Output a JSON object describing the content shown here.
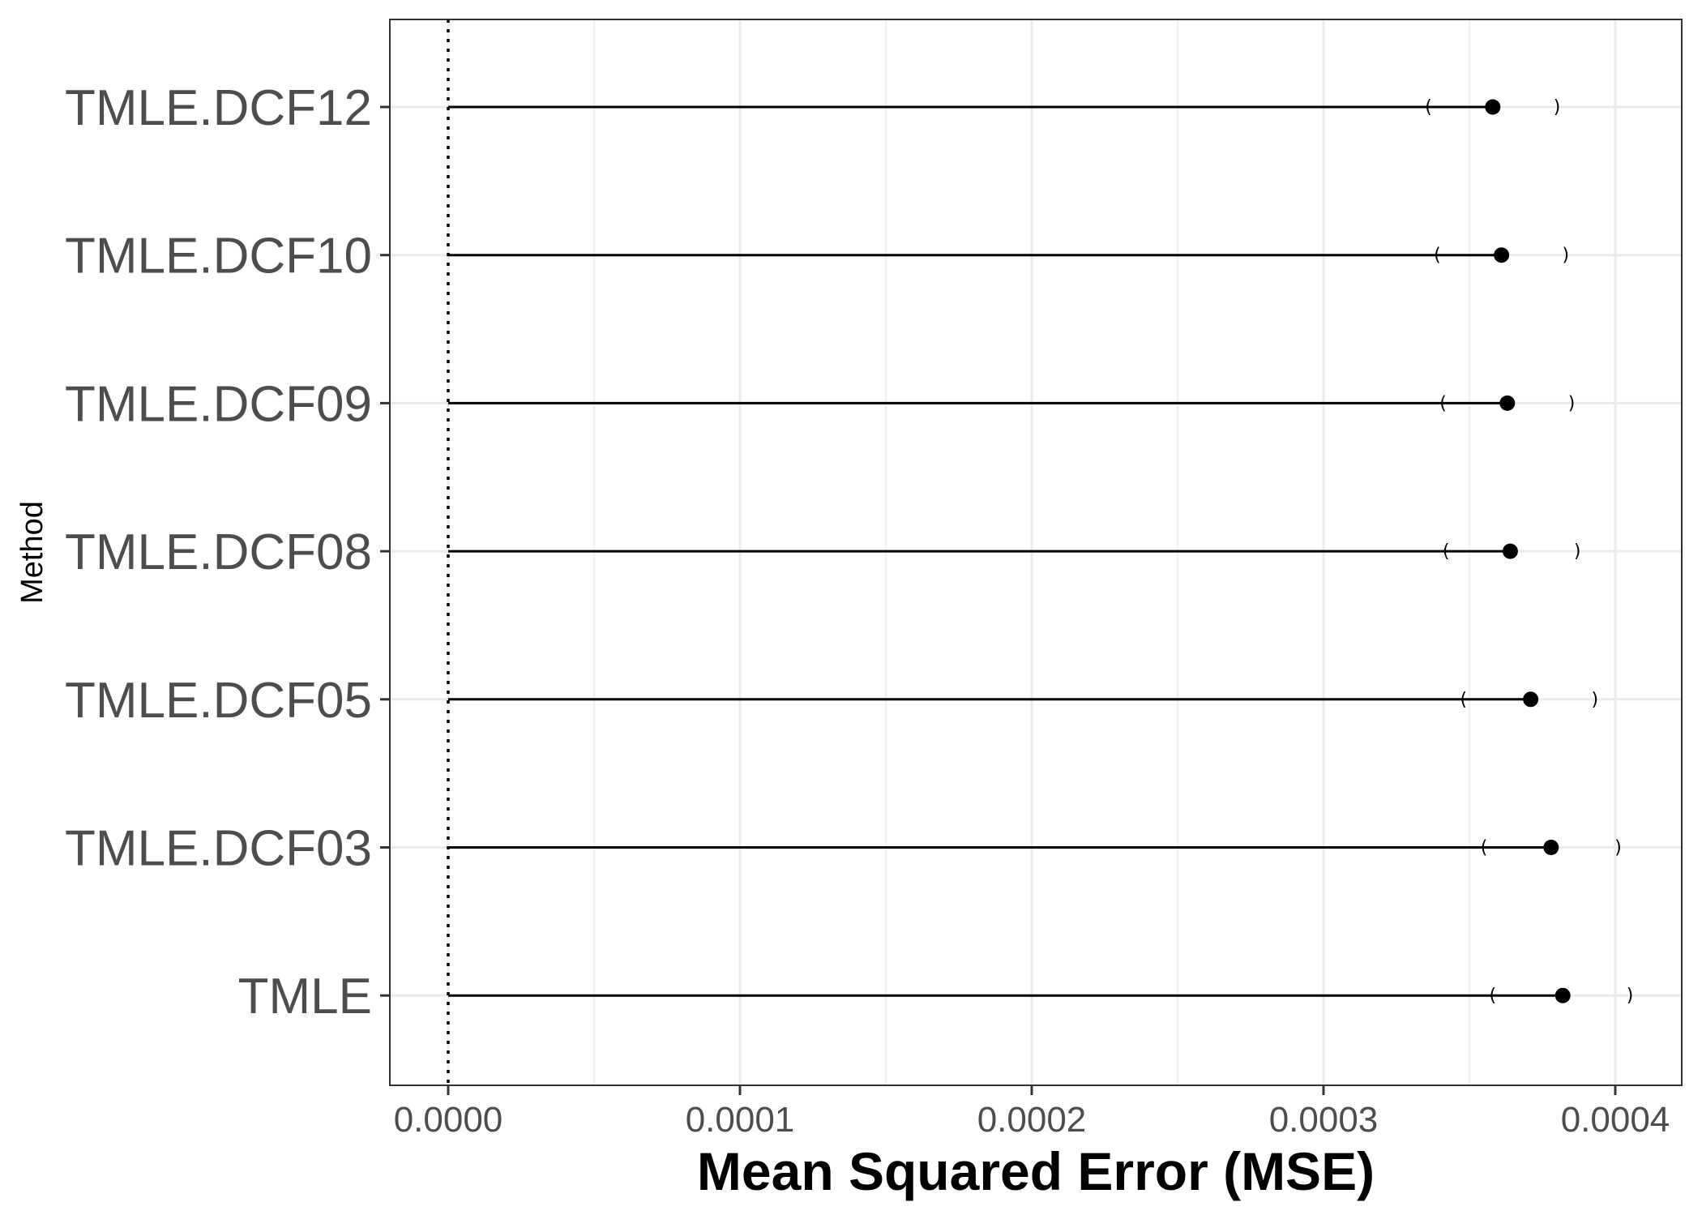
{
  "chart_data": {
    "type": "dot-with-interval",
    "title": "",
    "xlabel": "Mean Squared Error (MSE)",
    "ylabel": "Method",
    "xlim": [
      -2e-05,
      0.0004
    ],
    "x_ticks": [
      "0.0000",
      "0.0001",
      "0.0002",
      "0.0003",
      "0.0004"
    ],
    "x_tick_values": [
      0,
      0.0001,
      0.0002,
      0.0003,
      0.0004
    ],
    "reference_line": {
      "x": 0,
      "style": "dotted"
    },
    "grid": true,
    "categories": [
      "TMLE.DCF12",
      "TMLE.DCF10",
      "TMLE.DCF09",
      "TMLE.DCF08",
      "TMLE.DCF05",
      "TMLE.DCF03",
      "TMLE"
    ],
    "values": [
      0.000358,
      0.000361,
      0.000363,
      0.000364,
      0.000371,
      0.000378,
      0.000382
    ],
    "ci_lower": [
      0.000336,
      0.000339,
      0.000341,
      0.000342,
      0.000348,
      0.000355,
      0.000358
    ],
    "ci_upper": [
      0.00038,
      0.000383,
      0.000385,
      0.000387,
      0.000393,
      0.000401,
      0.000405
    ],
    "ci_left_symbol": "(",
    "ci_right_symbol": ")",
    "colors": {
      "point": "#000000",
      "panel_border": "#333333",
      "grid": "#ebebeb",
      "tick_text": "#4d4d4d"
    }
  }
}
